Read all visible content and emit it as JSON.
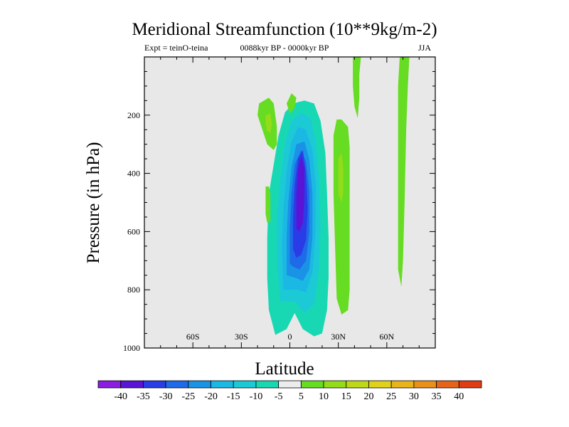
{
  "chart_data": {
    "type": "filled-contour",
    "title": "Meridional Streamfunction (10**9kg/m-2)",
    "subtitle_left": "Expt = teinO-teina",
    "subtitle_center": "0088kyr BP - 0000kyr BP",
    "subtitle_right": "JJA",
    "xlabel": "Latitude",
    "ylabel": "Pressure (in hPa)",
    "xlim": [
      -90,
      90
    ],
    "ylim": [
      1000,
      0
    ],
    "x_ticks": [
      {
        "value": -60,
        "label": "60S"
      },
      {
        "value": -30,
        "label": "30S"
      },
      {
        "value": 0,
        "label": "0"
      },
      {
        "value": 30,
        "label": "30N"
      },
      {
        "value": 60,
        "label": "60N"
      }
    ],
    "y_ticks": [
      {
        "value": 200,
        "label": "200"
      },
      {
        "value": 400,
        "label": "400"
      },
      {
        "value": 600,
        "label": "600"
      },
      {
        "value": 800,
        "label": "800"
      },
      {
        "value": 1000,
        "label": "1000"
      }
    ],
    "background_color": "#e8e8e8",
    "colorbar": {
      "labels": [
        "-40",
        "-35",
        "-30",
        "-25",
        "-20",
        "-15",
        "-10",
        "-5",
        "5",
        "10",
        "15",
        "20",
        "25",
        "30",
        "35",
        "40"
      ],
      "colors": [
        "#8a1de0",
        "#5a14d6",
        "#2a3ce6",
        "#1e6ae8",
        "#1a92e6",
        "#1cb8e4",
        "#1ccad6",
        "#18d8b4",
        "#ececec",
        "#66dc22",
        "#94dc1a",
        "#bcd818",
        "#e0d21a",
        "#e8b41a",
        "#e8901a",
        "#e6641a",
        "#e03c14"
      ]
    },
    "regions": [
      {
        "value": -7,
        "points": [
          [
            -9,
            955
          ],
          [
            -13,
            870
          ],
          [
            -14,
            760
          ],
          [
            -14,
            620
          ],
          [
            -13,
            470
          ],
          [
            -10,
            370
          ],
          [
            -7,
            270
          ],
          [
            -3,
            190
          ],
          [
            2,
            160
          ],
          [
            9,
            150
          ],
          [
            15,
            160
          ],
          [
            19,
            220
          ],
          [
            22,
            330
          ],
          [
            23,
            470
          ],
          [
            24,
            620
          ],
          [
            24,
            760
          ],
          [
            23,
            870
          ],
          [
            20,
            950
          ],
          [
            15,
            960
          ],
          [
            8,
            935
          ],
          [
            3,
            880
          ],
          [
            -2,
            935
          ]
        ]
      },
      {
        "value": -12,
        "points": [
          [
            -6,
            840
          ],
          [
            -8,
            700
          ],
          [
            -8,
            560
          ],
          [
            -6,
            420
          ],
          [
            -3,
            300
          ],
          [
            1,
            220
          ],
          [
            7,
            190
          ],
          [
            13,
            210
          ],
          [
            16,
            290
          ],
          [
            18,
            420
          ],
          [
            19,
            580
          ],
          [
            18,
            730
          ],
          [
            15,
            850
          ],
          [
            9,
            880
          ],
          [
            3,
            840
          ]
        ]
      },
      {
        "value": -17,
        "points": [
          [
            -4,
            800
          ],
          [
            -5,
            660
          ],
          [
            -4,
            520
          ],
          [
            -2,
            390
          ],
          [
            1,
            290
          ],
          [
            5,
            240
          ],
          [
            10,
            250
          ],
          [
            14,
            320
          ],
          [
            16,
            440
          ],
          [
            16,
            600
          ],
          [
            14,
            740
          ],
          [
            10,
            810
          ],
          [
            5,
            800
          ]
        ]
      },
      {
        "value": -22,
        "points": [
          [
            -2,
            750
          ],
          [
            -2,
            620
          ],
          [
            -1,
            500
          ],
          [
            1,
            380
          ],
          [
            4,
            300
          ],
          [
            9,
            290
          ],
          [
            12,
            350
          ],
          [
            14,
            470
          ],
          [
            14,
            620
          ],
          [
            12,
            730
          ],
          [
            8,
            770
          ],
          [
            4,
            760
          ]
        ]
      },
      {
        "value": -27,
        "points": [
          [
            0,
            710
          ],
          [
            0,
            590
          ],
          [
            1,
            470
          ],
          [
            3,
            370
          ],
          [
            7,
            320
          ],
          [
            10,
            360
          ],
          [
            12,
            460
          ],
          [
            12,
            600
          ],
          [
            10,
            700
          ],
          [
            6,
            730
          ],
          [
            2,
            720
          ]
        ]
      },
      {
        "value": -32,
        "points": [
          [
            2,
            660
          ],
          [
            2,
            550
          ],
          [
            3,
            440
          ],
          [
            5,
            350
          ],
          [
            8,
            320
          ],
          [
            10,
            400
          ],
          [
            11,
            520
          ],
          [
            10,
            630
          ],
          [
            7,
            680
          ],
          [
            4,
            690
          ]
        ]
      },
      {
        "value": -37,
        "points": [
          [
            4,
            590
          ],
          [
            4,
            480
          ],
          [
            5,
            390
          ],
          [
            7,
            340
          ],
          [
            9,
            380
          ],
          [
            9,
            480
          ],
          [
            8,
            570
          ],
          [
            6,
            600
          ]
        ]
      },
      {
        "value": 7,
        "points": [
          [
            -19,
            160
          ],
          [
            -13,
            140
          ],
          [
            -10,
            160
          ],
          [
            -8,
            240
          ],
          [
            -8,
            300
          ],
          [
            -10,
            320
          ],
          [
            -14,
            300
          ],
          [
            -17,
            250
          ],
          [
            -20,
            200
          ]
        ]
      },
      {
        "value": 12,
        "points": [
          [
            -15,
            200
          ],
          [
            -12,
            195
          ],
          [
            -11,
            230
          ],
          [
            -12,
            260
          ],
          [
            -14,
            255
          ],
          [
            -15,
            230
          ]
        ]
      },
      {
        "value": 7,
        "points": [
          [
            -2,
            160
          ],
          [
            1,
            125
          ],
          [
            4,
            140
          ],
          [
            3,
            175
          ],
          [
            0,
            195
          ]
        ]
      },
      {
        "value": 7,
        "points": [
          [
            -15,
            445
          ],
          [
            -13,
            445
          ],
          [
            -12,
            470
          ],
          [
            -12,
            565
          ],
          [
            -14,
            570
          ],
          [
            -15,
            540
          ]
        ]
      },
      {
        "value": 7,
        "points": [
          [
            27,
            270
          ],
          [
            29,
            215
          ],
          [
            32,
            215
          ],
          [
            36,
            240
          ],
          [
            37,
            310
          ],
          [
            37,
            460
          ],
          [
            37,
            640
          ],
          [
            37,
            800
          ],
          [
            36,
            870
          ],
          [
            32,
            885
          ],
          [
            29,
            830
          ],
          [
            28,
            650
          ],
          [
            27,
            470
          ]
        ]
      },
      {
        "value": 12,
        "points": [
          [
            30,
            350
          ],
          [
            32,
            330
          ],
          [
            33,
            380
          ],
          [
            33,
            470
          ],
          [
            32,
            500
          ],
          [
            30,
            470
          ]
        ]
      },
      {
        "value": 7,
        "points": [
          [
            39,
            0
          ],
          [
            44,
            0
          ],
          [
            43,
            60
          ],
          [
            43,
            140
          ],
          [
            42,
            210
          ],
          [
            40,
            170
          ],
          [
            39,
            100
          ]
        ]
      },
      {
        "value": 7,
        "points": [
          [
            68,
            0
          ],
          [
            74,
            0
          ],
          [
            73,
            100
          ],
          [
            72,
            250
          ],
          [
            71,
            500
          ],
          [
            70,
            700
          ],
          [
            69,
            790
          ],
          [
            67,
            730
          ],
          [
            67,
            500
          ],
          [
            67,
            250
          ],
          [
            67,
            100
          ]
        ]
      }
    ]
  }
}
